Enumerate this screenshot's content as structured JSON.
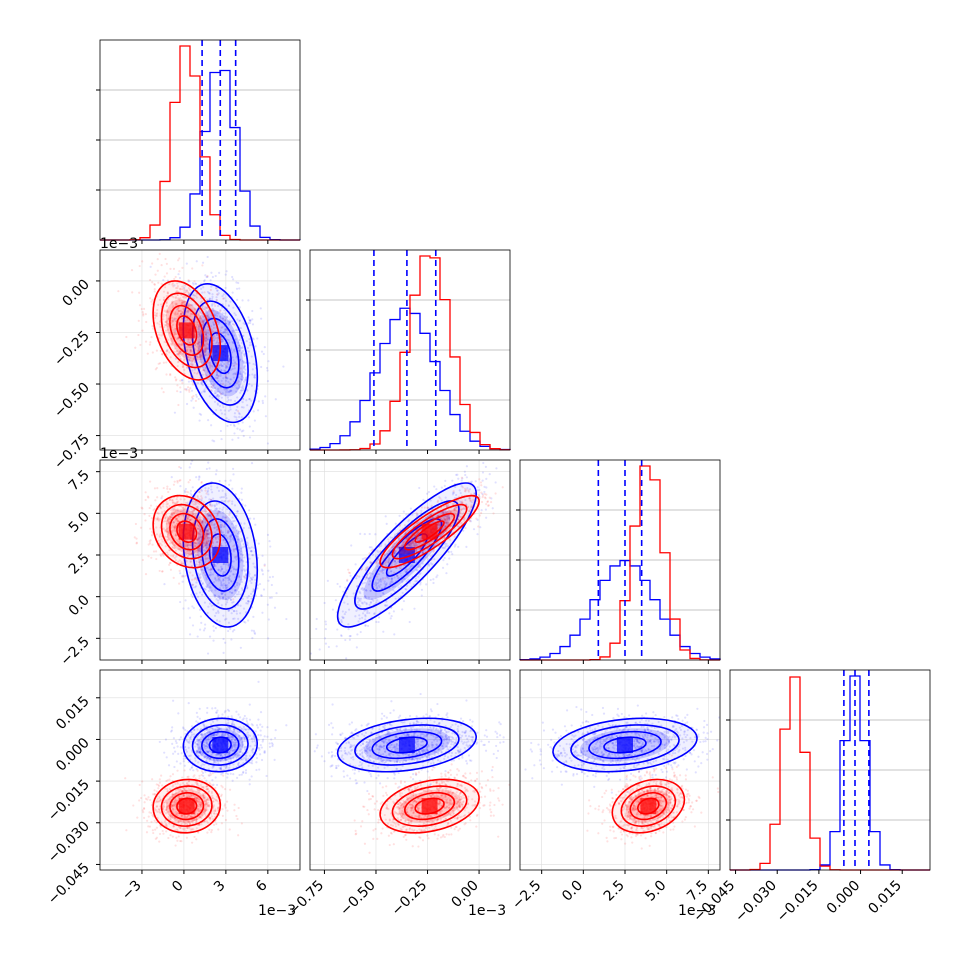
{
  "chart_data": {
    "type": "corner",
    "parameters": [
      {
        "index": 0,
        "range": [
          -6,
          8.3
        ],
        "ticks": [
          -3,
          0,
          3,
          6
        ],
        "tick_labels": [
          "−3",
          "0",
          "3",
          "6"
        ],
        "offset_label": "1e−3"
      },
      {
        "index": 1,
        "range": [
          -0.82,
          0.15
        ],
        "ticks": [
          -0.75,
          -0.5,
          -0.25,
          0.0
        ],
        "tick_labels": [
          "−0.75",
          "−0.50",
          "−0.25",
          "0.00"
        ],
        "offset_label": "1e−3"
      },
      {
        "index": 2,
        "range": [
          -3.8,
          8.2
        ],
        "ticks": [
          -2.5,
          0.0,
          2.5,
          5.0,
          7.5
        ],
        "tick_labels": [
          "−2.5",
          "0.0",
          "2.5",
          "5.0",
          "7.5"
        ],
        "offset_label": "1e−3"
      },
      {
        "index": 3,
        "range": [
          -0.047,
          0.025
        ],
        "ticks": [
          -0.045,
          -0.03,
          -0.015,
          0.0,
          0.015
        ],
        "tick_labels": [
          "−0.045",
          "−0.030",
          "−0.015",
          "0.000",
          "0.015"
        ],
        "offset_label": ""
      }
    ],
    "series": [
      {
        "color": "#0000ff",
        "mean": [
          2.6,
          -0.35,
          2.5,
          -0.002
        ],
        "sd": [
          1.1,
          0.14,
          1.8,
          0.004
        ],
        "quantiles": [
          [
            1.3,
            2.6,
            3.7
          ],
          [
            -0.51,
            -0.35,
            -0.21
          ],
          [
            0.9,
            2.5,
            3.5
          ],
          [
            -0.006,
            -0.002,
            0.003
          ]
        ]
      },
      {
        "color": "#ff0000",
        "mean": [
          0.2,
          -0.24,
          3.9,
          -0.024
        ],
        "sd": [
          1.0,
          0.1,
          0.9,
          0.004
        ]
      }
    ],
    "quantile_line_color": "#0000ff",
    "grid": true,
    "colors": {
      "blue": "#0000ff",
      "red": "#ff0000"
    }
  }
}
